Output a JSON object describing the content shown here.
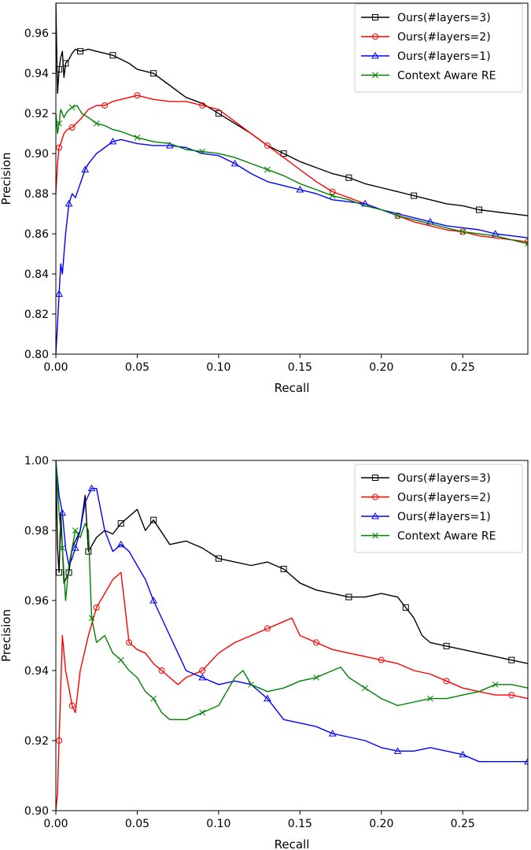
{
  "chart_data": [
    {
      "type": "line",
      "xlabel": "Recall",
      "ylabel": "Precision",
      "xlim": [
        0,
        0.29
      ],
      "ylim": [
        0.8,
        0.975
      ],
      "xticks": [
        "0.00",
        "0.05",
        "0.10",
        "0.15",
        "0.20",
        "0.25"
      ],
      "yticks": [
        "0.80",
        "0.82",
        "0.84",
        "0.86",
        "0.88",
        "0.90",
        "0.92",
        "0.94",
        "0.96"
      ],
      "legend_position": "top-right",
      "series": [
        {
          "name": "Ours(#layers=3)",
          "color": "#000000",
          "marker": "square",
          "x": [
            0.0,
            0.001,
            0.002,
            0.003,
            0.004,
            0.005,
            0.006,
            0.008,
            0.01,
            0.012,
            0.015,
            0.02,
            0.025,
            0.03,
            0.035,
            0.04,
            0.045,
            0.05,
            0.06,
            0.07,
            0.08,
            0.09,
            0.1,
            0.11,
            0.12,
            0.13,
            0.14,
            0.15,
            0.16,
            0.17,
            0.18,
            0.19,
            0.2,
            0.21,
            0.22,
            0.23,
            0.24,
            0.25,
            0.26,
            0.27,
            0.28,
            0.29
          ],
          "y": [
            0.975,
            0.93,
            0.942,
            0.948,
            0.951,
            0.938,
            0.945,
            0.947,
            0.95,
            0.952,
            0.951,
            0.952,
            0.951,
            0.95,
            0.949,
            0.947,
            0.945,
            0.942,
            0.94,
            0.934,
            0.928,
            0.925,
            0.92,
            0.915,
            0.91,
            0.904,
            0.9,
            0.896,
            0.893,
            0.89,
            0.888,
            0.885,
            0.883,
            0.881,
            0.879,
            0.877,
            0.875,
            0.874,
            0.872,
            0.871,
            0.87,
            0.869
          ]
        },
        {
          "name": "Ours(#layers=2)",
          "color": "#ff0000",
          "marker": "circle",
          "x": [
            0.0,
            0.001,
            0.002,
            0.003,
            0.005,
            0.007,
            0.01,
            0.015,
            0.02,
            0.025,
            0.03,
            0.035,
            0.04,
            0.045,
            0.05,
            0.06,
            0.07,
            0.08,
            0.09,
            0.1,
            0.11,
            0.12,
            0.13,
            0.14,
            0.15,
            0.16,
            0.17,
            0.18,
            0.19,
            0.2,
            0.21,
            0.22,
            0.23,
            0.24,
            0.25,
            0.26,
            0.27,
            0.28,
            0.29
          ],
          "y": [
            0.88,
            0.895,
            0.903,
            0.905,
            0.91,
            0.912,
            0.913,
            0.917,
            0.922,
            0.924,
            0.924,
            0.926,
            0.927,
            0.928,
            0.929,
            0.927,
            0.926,
            0.926,
            0.924,
            0.922,
            0.916,
            0.91,
            0.904,
            0.898,
            0.892,
            0.886,
            0.881,
            0.878,
            0.875,
            0.872,
            0.869,
            0.866,
            0.864,
            0.862,
            0.861,
            0.859,
            0.858,
            0.857,
            0.856
          ]
        },
        {
          "name": "Ours(#layers=1)",
          "color": "#0000ff",
          "marker": "triangle",
          "x": [
            0.0,
            0.001,
            0.002,
            0.003,
            0.004,
            0.006,
            0.008,
            0.01,
            0.012,
            0.015,
            0.018,
            0.02,
            0.025,
            0.03,
            0.035,
            0.04,
            0.05,
            0.06,
            0.07,
            0.08,
            0.09,
            0.1,
            0.11,
            0.12,
            0.13,
            0.14,
            0.15,
            0.16,
            0.17,
            0.18,
            0.19,
            0.2,
            0.21,
            0.22,
            0.23,
            0.24,
            0.25,
            0.26,
            0.27,
            0.28,
            0.29
          ],
          "y": [
            0.8,
            0.815,
            0.83,
            0.845,
            0.84,
            0.86,
            0.875,
            0.88,
            0.878,
            0.885,
            0.892,
            0.895,
            0.9,
            0.903,
            0.906,
            0.907,
            0.905,
            0.904,
            0.904,
            0.903,
            0.9,
            0.899,
            0.895,
            0.89,
            0.886,
            0.884,
            0.882,
            0.88,
            0.877,
            0.876,
            0.875,
            0.872,
            0.87,
            0.868,
            0.866,
            0.864,
            0.863,
            0.862,
            0.86,
            0.859,
            0.858
          ]
        },
        {
          "name": "Context Aware RE",
          "color": "#008000",
          "marker": "x",
          "x": [
            0.0,
            0.001,
            0.002,
            0.003,
            0.005,
            0.007,
            0.01,
            0.013,
            0.016,
            0.02,
            0.025,
            0.03,
            0.035,
            0.04,
            0.05,
            0.06,
            0.07,
            0.08,
            0.09,
            0.1,
            0.11,
            0.12,
            0.13,
            0.14,
            0.15,
            0.16,
            0.17,
            0.18,
            0.19,
            0.2,
            0.21,
            0.22,
            0.23,
            0.24,
            0.25,
            0.26,
            0.27,
            0.28,
            0.29
          ],
          "y": [
            0.92,
            0.91,
            0.915,
            0.922,
            0.918,
            0.921,
            0.923,
            0.924,
            0.92,
            0.918,
            0.915,
            0.914,
            0.912,
            0.911,
            0.908,
            0.906,
            0.905,
            0.902,
            0.901,
            0.9,
            0.898,
            0.895,
            0.892,
            0.889,
            0.885,
            0.882,
            0.879,
            0.877,
            0.874,
            0.872,
            0.869,
            0.867,
            0.865,
            0.863,
            0.861,
            0.86,
            0.859,
            0.857,
            0.855
          ]
        }
      ]
    },
    {
      "type": "line",
      "xlabel": "Recall",
      "ylabel": "Precision",
      "xlim": [
        0,
        0.29
      ],
      "ylim": [
        0.9,
        1.0
      ],
      "xticks": [
        "0.00",
        "0.05",
        "0.10",
        "0.15",
        "0.20",
        "0.25"
      ],
      "yticks": [
        "0.90",
        "0.92",
        "0.94",
        "0.96",
        "0.98",
        "1.00"
      ],
      "legend_position": "top-right",
      "series": [
        {
          "name": "Ours(#layers=3)",
          "color": "#000000",
          "marker": "square",
          "x": [
            0.0,
            0.001,
            0.002,
            0.003,
            0.004,
            0.005,
            0.008,
            0.01,
            0.015,
            0.018,
            0.02,
            0.025,
            0.03,
            0.035,
            0.04,
            0.045,
            0.05,
            0.055,
            0.06,
            0.07,
            0.08,
            0.09,
            0.1,
            0.11,
            0.12,
            0.13,
            0.14,
            0.15,
            0.16,
            0.17,
            0.18,
            0.19,
            0.2,
            0.21,
            0.215,
            0.22,
            0.225,
            0.23,
            0.24,
            0.25,
            0.26,
            0.27,
            0.28,
            0.29
          ],
          "y": [
            1.0,
            0.975,
            0.968,
            0.985,
            0.975,
            0.965,
            0.968,
            0.975,
            0.98,
            0.99,
            0.974,
            0.978,
            0.98,
            0.979,
            0.982,
            0.984,
            0.986,
            0.98,
            0.983,
            0.976,
            0.977,
            0.975,
            0.972,
            0.971,
            0.97,
            0.971,
            0.969,
            0.965,
            0.963,
            0.962,
            0.961,
            0.961,
            0.962,
            0.961,
            0.958,
            0.955,
            0.95,
            0.948,
            0.947,
            0.946,
            0.945,
            0.944,
            0.943,
            0.942
          ]
        },
        {
          "name": "Ours(#layers=2)",
          "color": "#ff0000",
          "marker": "circle",
          "x": [
            0.0,
            0.001,
            0.002,
            0.004,
            0.006,
            0.008,
            0.01,
            0.012,
            0.015,
            0.02,
            0.025,
            0.03,
            0.035,
            0.04,
            0.045,
            0.05,
            0.055,
            0.06,
            0.065,
            0.07,
            0.075,
            0.08,
            0.09,
            0.1,
            0.11,
            0.12,
            0.13,
            0.14,
            0.145,
            0.15,
            0.16,
            0.17,
            0.18,
            0.19,
            0.2,
            0.21,
            0.22,
            0.23,
            0.24,
            0.25,
            0.26,
            0.27,
            0.28,
            0.29
          ],
          "y": [
            0.9,
            0.905,
            0.92,
            0.95,
            0.94,
            0.935,
            0.93,
            0.928,
            0.94,
            0.95,
            0.958,
            0.962,
            0.966,
            0.968,
            0.948,
            0.946,
            0.945,
            0.942,
            0.94,
            0.938,
            0.936,
            0.938,
            0.94,
            0.945,
            0.948,
            0.95,
            0.952,
            0.954,
            0.955,
            0.95,
            0.948,
            0.946,
            0.945,
            0.944,
            0.943,
            0.942,
            0.94,
            0.939,
            0.937,
            0.935,
            0.934,
            0.933,
            0.933,
            0.932
          ]
        },
        {
          "name": "Ours(#layers=1)",
          "color": "#0000ff",
          "marker": "triangle",
          "x": [
            0.0,
            0.002,
            0.004,
            0.006,
            0.008,
            0.01,
            0.012,
            0.015,
            0.018,
            0.02,
            0.022,
            0.025,
            0.03,
            0.035,
            0.04,
            0.045,
            0.05,
            0.055,
            0.06,
            0.07,
            0.075,
            0.08,
            0.09,
            0.1,
            0.11,
            0.12,
            0.13,
            0.14,
            0.15,
            0.16,
            0.17,
            0.18,
            0.19,
            0.2,
            0.21,
            0.22,
            0.23,
            0.24,
            0.25,
            0.26,
            0.27,
            0.28,
            0.29
          ],
          "y": [
            1.0,
            0.99,
            0.985,
            0.975,
            0.97,
            0.972,
            0.975,
            0.98,
            0.988,
            0.99,
            0.992,
            0.992,
            0.98,
            0.974,
            0.976,
            0.974,
            0.97,
            0.966,
            0.96,
            0.95,
            0.945,
            0.94,
            0.938,
            0.936,
            0.937,
            0.936,
            0.932,
            0.926,
            0.925,
            0.924,
            0.922,
            0.921,
            0.92,
            0.918,
            0.917,
            0.917,
            0.918,
            0.917,
            0.916,
            0.914,
            0.914,
            0.914,
            0.914
          ]
        },
        {
          "name": "Context Aware RE",
          "color": "#008000",
          "marker": "x",
          "x": [
            0.0,
            0.002,
            0.004,
            0.006,
            0.008,
            0.01,
            0.012,
            0.015,
            0.018,
            0.02,
            0.022,
            0.025,
            0.03,
            0.035,
            0.04,
            0.045,
            0.05,
            0.055,
            0.06,
            0.065,
            0.07,
            0.08,
            0.09,
            0.1,
            0.11,
            0.115,
            0.12,
            0.13,
            0.14,
            0.15,
            0.16,
            0.17,
            0.175,
            0.18,
            0.19,
            0.2,
            0.21,
            0.22,
            0.23,
            0.24,
            0.25,
            0.26,
            0.27,
            0.28,
            0.29
          ],
          "y": [
            1.0,
            0.985,
            0.975,
            0.96,
            0.97,
            0.975,
            0.98,
            0.978,
            0.982,
            0.98,
            0.955,
            0.948,
            0.95,
            0.945,
            0.943,
            0.94,
            0.938,
            0.934,
            0.932,
            0.928,
            0.926,
            0.926,
            0.928,
            0.93,
            0.938,
            0.94,
            0.936,
            0.934,
            0.935,
            0.937,
            0.938,
            0.94,
            0.941,
            0.938,
            0.935,
            0.932,
            0.93,
            0.931,
            0.932,
            0.932,
            0.933,
            0.934,
            0.936,
            0.936,
            0.935
          ]
        }
      ]
    }
  ]
}
